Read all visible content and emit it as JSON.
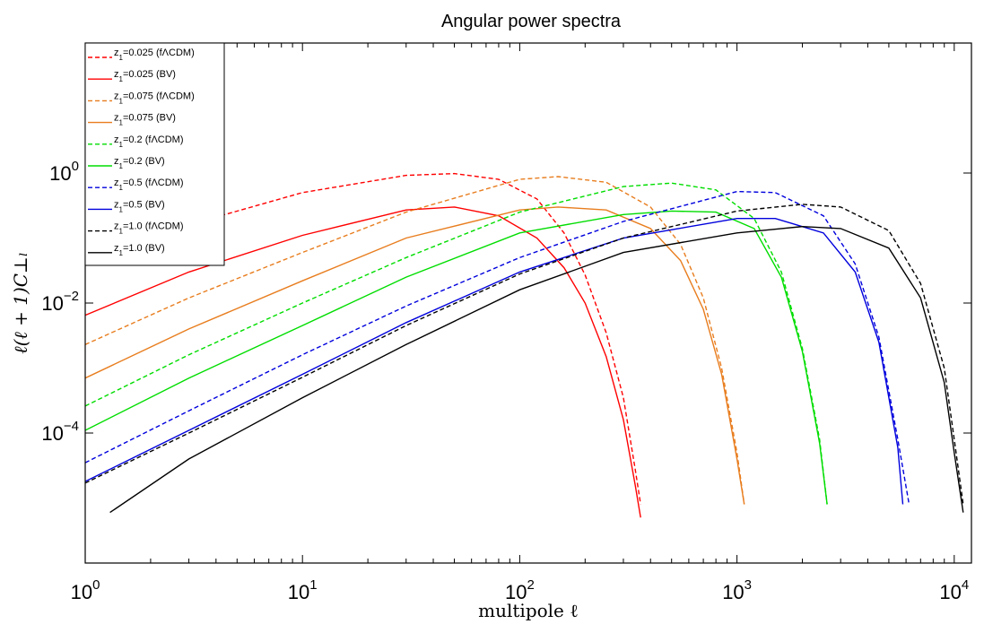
{
  "chart_data": {
    "type": "line",
    "title": "Angular power spectra",
    "xlabel": "multipole ℓ",
    "ylabel": "ℓ(ℓ + 1)C⊥ₗ",
    "xscale": "log",
    "yscale": "log",
    "xlim": [
      1,
      12000
    ],
    "ylim": [
      1e-06,
      100
    ],
    "x_ticks": [
      {
        "value": 1,
        "base": "10",
        "exp": "0"
      },
      {
        "value": 10,
        "base": "10",
        "exp": "1"
      },
      {
        "value": 100,
        "base": "10",
        "exp": "2"
      },
      {
        "value": 1000,
        "base": "10",
        "exp": "3"
      },
      {
        "value": 10000,
        "base": "10",
        "exp": "4"
      }
    ],
    "y_ticks": [
      {
        "value": 0.0001,
        "base": "10",
        "exp": "−4"
      },
      {
        "value": 0.01,
        "base": "10",
        "exp": "−2"
      },
      {
        "value": 1,
        "base": "10",
        "exp": "0"
      }
    ],
    "grid": false,
    "legend_position": "top-left",
    "series": [
      {
        "name": "z₁=0.025 (fΛCDM)",
        "label_main": "z",
        "label_sub": "1",
        "label_rest": "=0.025 (fΛCDM)",
        "color": "#ff0000",
        "dash": true,
        "x": [
          1,
          3,
          10,
          30,
          50,
          80,
          120,
          160,
          200,
          250,
          300,
          340,
          360
        ],
        "y": [
          0.042,
          0.16,
          0.5,
          0.92,
          0.98,
          0.8,
          0.4,
          0.12,
          0.027,
          0.0035,
          0.00035,
          2.8e-05,
          8e-06
        ]
      },
      {
        "name": "z₁=0.025 (BV)",
        "label_main": "z",
        "label_sub": "1",
        "label_rest": "=0.025 (BV)",
        "color": "#ff0000",
        "dash": false,
        "x": [
          1,
          3,
          10,
          30,
          50,
          80,
          120,
          160,
          200,
          250,
          300,
          340,
          360
        ],
        "y": [
          0.0065,
          0.03,
          0.11,
          0.27,
          0.3,
          0.22,
          0.1,
          0.035,
          0.01,
          0.0015,
          0.00016,
          1.6e-05,
          5e-06
        ]
      },
      {
        "name": "z₁=0.075 (fΛCDM)",
        "label_main": "z",
        "label_sub": "1",
        "label_rest": "=0.075 (fΛCDM)",
        "color": "#e87d1e",
        "dash": true,
        "x": [
          1,
          3,
          10,
          30,
          100,
          150,
          250,
          400,
          550,
          700,
          850,
          1000,
          1080
        ],
        "y": [
          0.0023,
          0.012,
          0.06,
          0.25,
          0.8,
          0.88,
          0.72,
          0.3,
          0.08,
          0.012,
          0.001,
          5e-05,
          8e-06
        ]
      },
      {
        "name": "z₁=0.075 (BV)",
        "label_main": "z",
        "label_sub": "1",
        "label_rest": "=0.075 (BV)",
        "color": "#e87d1e",
        "dash": false,
        "x": [
          1,
          3,
          10,
          30,
          100,
          150,
          250,
          400,
          550,
          700,
          850,
          1000,
          1080
        ],
        "y": [
          0.0007,
          0.004,
          0.022,
          0.1,
          0.27,
          0.3,
          0.27,
          0.14,
          0.045,
          0.008,
          0.0008,
          4e-05,
          8e-06
        ]
      },
      {
        "name": "z₁=0.2 (fΛCDM)",
        "label_main": "z",
        "label_sub": "1",
        "label_rest": "=0.2 (fΛCDM)",
        "color": "#00dd00",
        "dash": true,
        "x": [
          1,
          3,
          10,
          30,
          100,
          300,
          500,
          800,
          1200,
          1600,
          2000,
          2400,
          2600
        ],
        "y": [
          0.00026,
          0.0016,
          0.01,
          0.05,
          0.25,
          0.62,
          0.7,
          0.55,
          0.2,
          0.03,
          0.002,
          8e-05,
          8e-06
        ]
      },
      {
        "name": "z₁=0.2 (BV)",
        "label_main": "z",
        "label_sub": "1",
        "label_rest": "=0.2 (BV)",
        "color": "#00dd00",
        "dash": false,
        "x": [
          1,
          3,
          10,
          30,
          100,
          300,
          500,
          800,
          1200,
          1600,
          2000,
          2400,
          2600
        ],
        "y": [
          0.00011,
          0.0007,
          0.0045,
          0.025,
          0.12,
          0.23,
          0.26,
          0.25,
          0.14,
          0.025,
          0.0018,
          7e-05,
          8e-06
        ]
      },
      {
        "name": "z₁=0.5 (fΛCDM)",
        "label_main": "z",
        "label_sub": "1",
        "label_rest": "=0.5 (fΛCDM)",
        "color": "#0000dd",
        "dash": true,
        "x": [
          1,
          3,
          10,
          30,
          100,
          300,
          1000,
          1500,
          2500,
          3500,
          4500,
          5500,
          6200
        ],
        "y": [
          3.5e-05,
          0.00022,
          0.0016,
          0.009,
          0.05,
          0.18,
          0.52,
          0.5,
          0.22,
          0.04,
          0.003,
          8e-05,
          8e-06
        ]
      },
      {
        "name": "z₁=0.5 (BV)",
        "label_main": "z",
        "label_sub": "1",
        "label_rest": "=0.5 (BV)",
        "color": "#0000dd",
        "dash": false,
        "x": [
          1,
          3,
          10,
          30,
          100,
          300,
          1000,
          1500,
          2500,
          3500,
          4500,
          5500,
          5800
        ],
        "y": [
          1.8e-05,
          0.00011,
          0.0008,
          0.005,
          0.03,
          0.1,
          0.2,
          0.2,
          0.12,
          0.03,
          0.0025,
          6e-05,
          8e-06
        ]
      },
      {
        "name": "z₁=1.0 (fΛCDM)",
        "label_main": "z",
        "label_sub": "1",
        "label_rest": "=1.0 (fΛCDM)",
        "color": "#000000",
        "dash": true,
        "x": [
          1,
          3,
          10,
          30,
          100,
          300,
          1000,
          2000,
          3000,
          5000,
          7000,
          9000,
          10000,
          11000
        ],
        "y": [
          1.7e-05,
          0.0001,
          0.00072,
          0.0045,
          0.028,
          0.1,
          0.26,
          0.33,
          0.3,
          0.13,
          0.02,
          0.001,
          8e-05,
          8e-06
        ]
      },
      {
        "name": "z₁=1.0 (BV)",
        "label_main": "z",
        "label_sub": "1",
        "label_rest": "=1.0 (BV)",
        "color": "#000000",
        "dash": false,
        "x": [
          1.3,
          3,
          10,
          30,
          100,
          300,
          1000,
          2000,
          3000,
          5000,
          7000,
          9000,
          10000,
          11000
        ],
        "y": [
          6e-06,
          4e-05,
          0.00035,
          0.0023,
          0.016,
          0.06,
          0.12,
          0.15,
          0.14,
          0.07,
          0.012,
          0.0006,
          5e-05,
          6e-06
        ]
      }
    ]
  }
}
